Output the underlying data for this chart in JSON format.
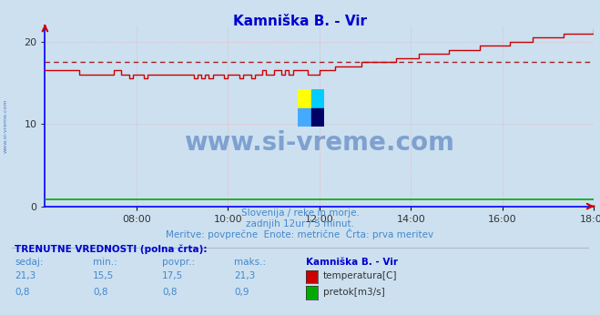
{
  "title": "Kamniška B. - Vir",
  "title_color": "#0000cc",
  "bg_color": "#cce0f0",
  "plot_bg_color": "#cce0f0",
  "fig_bg_color": "#cce0f0",
  "xmin": 0,
  "xmax": 144,
  "ymin": 0,
  "ymax": 22,
  "yticks": [
    0,
    10,
    20
  ],
  "xtick_labels": [
    "08:00",
    "10:00",
    "12:00",
    "14:00",
    "16:00",
    "18:00"
  ],
  "xtick_positions": [
    24,
    48,
    72,
    96,
    120,
    144
  ],
  "temp_avg": 17.5,
  "temp_color": "#cc0000",
  "flow_color": "#00aa00",
  "watermark_text": "www.si-vreme.com",
  "watermark_color": "#2255aa",
  "watermark_alpha": 0.45,
  "side_text": "www.si-vreme.com",
  "subtitle1": "Slovenija / reke in morje.",
  "subtitle2": "zadnjih 12ur / 5 minut.",
  "subtitle3": "Meritve: povprečne  Enote: metrične  Črta: prva meritev",
  "subtitle_color": "#4488cc",
  "table_header": "TRENUTNE VREDNOSTI (polna črta):",
  "table_col1": "sedaj:",
  "table_col2": "min.:",
  "table_col3": "povpr.:",
  "table_col4": "maks.:",
  "table_col5": "Kamniška B. - Vir",
  "temp_sedaj": "21,3",
  "temp_min": "15,5",
  "temp_povpr": "17,5",
  "temp_maks": "21,3",
  "flow_sedaj": "0,8",
  "flow_min": "0,8",
  "flow_povpr": "0,8",
  "flow_maks": "0,9",
  "temp_label": "temperatura[C]",
  "flow_label": "pretok[m3/s]",
  "grid_color": "#ff8888",
  "grid_alpha": 0.55,
  "axis_color": "#0000ff",
  "tick_color": "#333333"
}
